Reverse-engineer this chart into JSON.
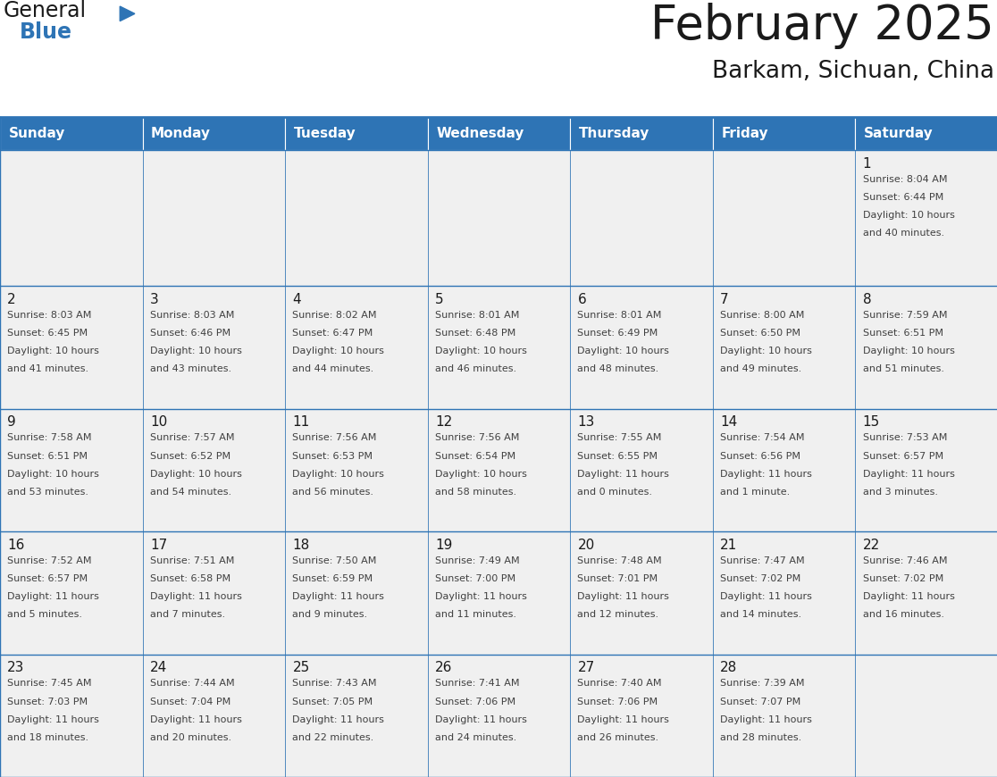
{
  "title": "February 2025",
  "subtitle": "Barkam, Sichuan, China",
  "header_bg": "#2E74B5",
  "header_text_color": "#FFFFFF",
  "cell_bg": "#F0F0F0",
  "day_names": [
    "Sunday",
    "Monday",
    "Tuesday",
    "Wednesday",
    "Thursday",
    "Friday",
    "Saturday"
  ],
  "title_color": "#1a1a1a",
  "subtitle_color": "#1a1a1a",
  "border_color": "#2E74B5",
  "day_number_color": "#1a1a1a",
  "info_text_color": "#404040",
  "logo_text_color": "#1a1a1a",
  "logo_blue_color": "#2E74B5",
  "calendar_data": [
    [
      null,
      null,
      null,
      null,
      null,
      null,
      {
        "day": 1,
        "sunrise": "8:04 AM",
        "sunset": "6:44 PM",
        "daylight": "10 hours and 40 minutes."
      }
    ],
    [
      {
        "day": 2,
        "sunrise": "8:03 AM",
        "sunset": "6:45 PM",
        "daylight": "10 hours and 41 minutes."
      },
      {
        "day": 3,
        "sunrise": "8:03 AM",
        "sunset": "6:46 PM",
        "daylight": "10 hours and 43 minutes."
      },
      {
        "day": 4,
        "sunrise": "8:02 AM",
        "sunset": "6:47 PM",
        "daylight": "10 hours and 44 minutes."
      },
      {
        "day": 5,
        "sunrise": "8:01 AM",
        "sunset": "6:48 PM",
        "daylight": "10 hours and 46 minutes."
      },
      {
        "day": 6,
        "sunrise": "8:01 AM",
        "sunset": "6:49 PM",
        "daylight": "10 hours and 48 minutes."
      },
      {
        "day": 7,
        "sunrise": "8:00 AM",
        "sunset": "6:50 PM",
        "daylight": "10 hours and 49 minutes."
      },
      {
        "day": 8,
        "sunrise": "7:59 AM",
        "sunset": "6:51 PM",
        "daylight": "10 hours and 51 minutes."
      }
    ],
    [
      {
        "day": 9,
        "sunrise": "7:58 AM",
        "sunset": "6:51 PM",
        "daylight": "10 hours and 53 minutes."
      },
      {
        "day": 10,
        "sunrise": "7:57 AM",
        "sunset": "6:52 PM",
        "daylight": "10 hours and 54 minutes."
      },
      {
        "day": 11,
        "sunrise": "7:56 AM",
        "sunset": "6:53 PM",
        "daylight": "10 hours and 56 minutes."
      },
      {
        "day": 12,
        "sunrise": "7:56 AM",
        "sunset": "6:54 PM",
        "daylight": "10 hours and 58 minutes."
      },
      {
        "day": 13,
        "sunrise": "7:55 AM",
        "sunset": "6:55 PM",
        "daylight": "11 hours and 0 minutes."
      },
      {
        "day": 14,
        "sunrise": "7:54 AM",
        "sunset": "6:56 PM",
        "daylight": "11 hours and 1 minute."
      },
      {
        "day": 15,
        "sunrise": "7:53 AM",
        "sunset": "6:57 PM",
        "daylight": "11 hours and 3 minutes."
      }
    ],
    [
      {
        "day": 16,
        "sunrise": "7:52 AM",
        "sunset": "6:57 PM",
        "daylight": "11 hours and 5 minutes."
      },
      {
        "day": 17,
        "sunrise": "7:51 AM",
        "sunset": "6:58 PM",
        "daylight": "11 hours and 7 minutes."
      },
      {
        "day": 18,
        "sunrise": "7:50 AM",
        "sunset": "6:59 PM",
        "daylight": "11 hours and 9 minutes."
      },
      {
        "day": 19,
        "sunrise": "7:49 AM",
        "sunset": "7:00 PM",
        "daylight": "11 hours and 11 minutes."
      },
      {
        "day": 20,
        "sunrise": "7:48 AM",
        "sunset": "7:01 PM",
        "daylight": "11 hours and 12 minutes."
      },
      {
        "day": 21,
        "sunrise": "7:47 AM",
        "sunset": "7:02 PM",
        "daylight": "11 hours and 14 minutes."
      },
      {
        "day": 22,
        "sunrise": "7:46 AM",
        "sunset": "7:02 PM",
        "daylight": "11 hours and 16 minutes."
      }
    ],
    [
      {
        "day": 23,
        "sunrise": "7:45 AM",
        "sunset": "7:03 PM",
        "daylight": "11 hours and 18 minutes."
      },
      {
        "day": 24,
        "sunrise": "7:44 AM",
        "sunset": "7:04 PM",
        "daylight": "11 hours and 20 minutes."
      },
      {
        "day": 25,
        "sunrise": "7:43 AM",
        "sunset": "7:05 PM",
        "daylight": "11 hours and 22 minutes."
      },
      {
        "day": 26,
        "sunrise": "7:41 AM",
        "sunset": "7:06 PM",
        "daylight": "11 hours and 24 minutes."
      },
      {
        "day": 27,
        "sunrise": "7:40 AM",
        "sunset": "7:06 PM",
        "daylight": "11 hours and 26 minutes."
      },
      {
        "day": 28,
        "sunrise": "7:39 AM",
        "sunset": "7:07 PM",
        "daylight": "11 hours and 28 minutes."
      },
      null
    ]
  ]
}
